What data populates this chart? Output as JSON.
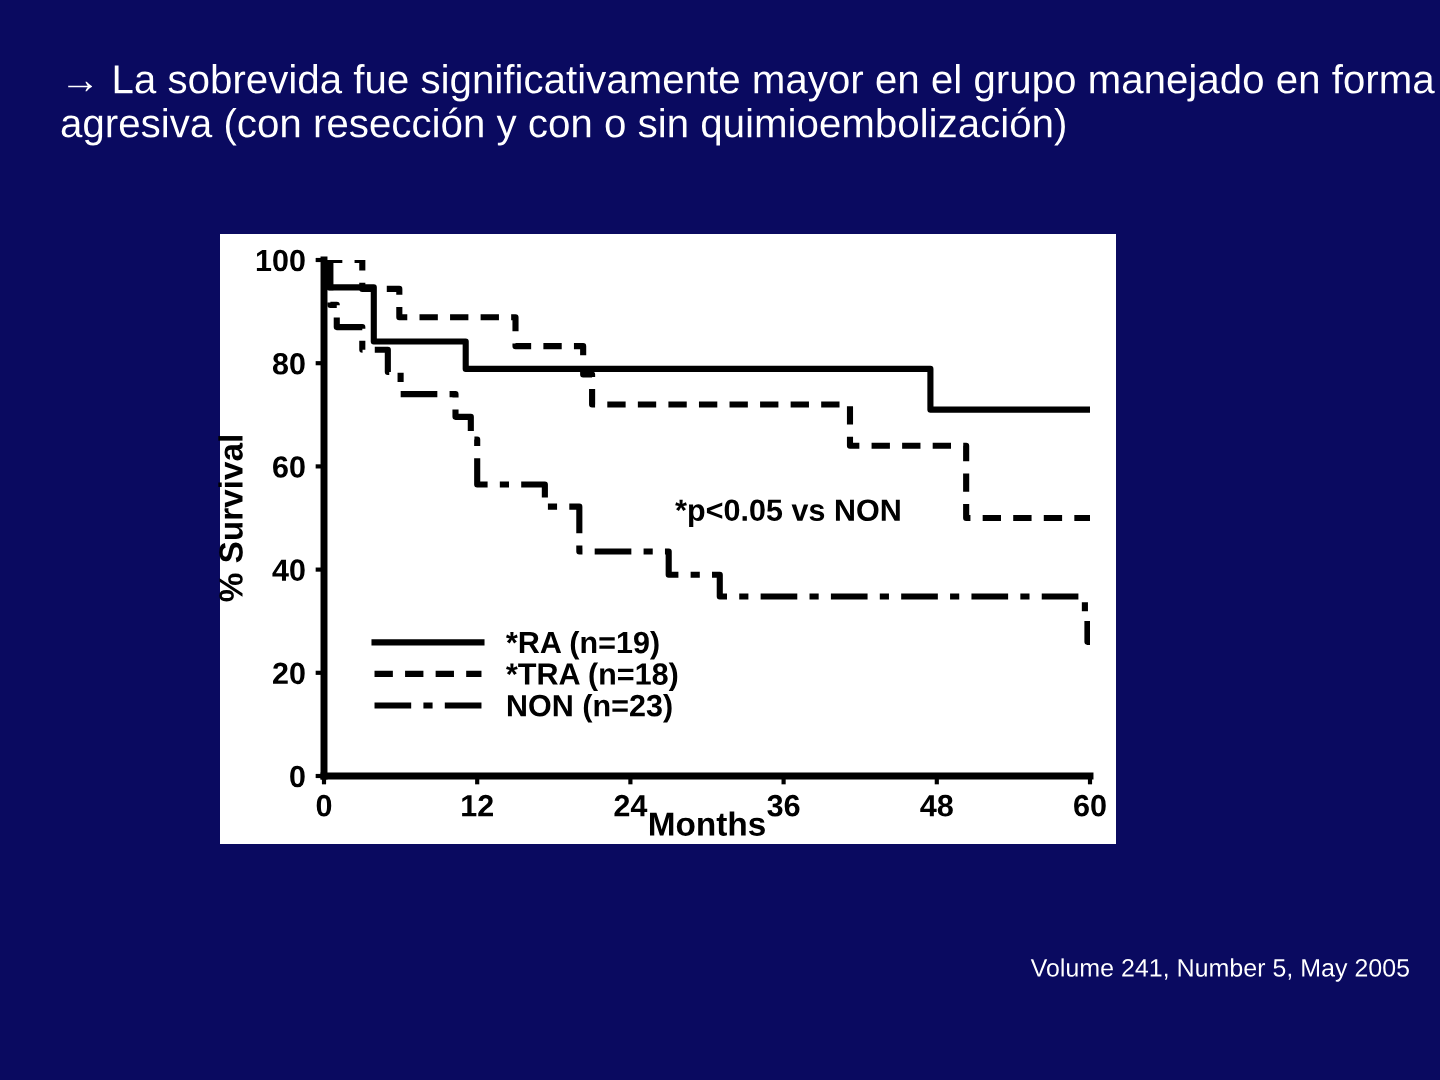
{
  "chart_data": {
    "type": "step",
    "title": "→ La sobrevida fue significativamente mayor en el grupo manejado en forma agresiva (con resección y con o sin quimioembolización)",
    "xlabel": "Months",
    "ylabel": "% Survival",
    "xlim": [
      0,
      60
    ],
    "xticks": [
      0,
      12,
      24,
      36,
      48,
      60
    ],
    "ylim": [
      0,
      100
    ],
    "yticks": [
      0,
      20,
      40,
      60,
      80,
      100
    ],
    "grid": false,
    "legend": "bottom left",
    "series": [
      {
        "name": "*RA (n=19)",
        "color": "#000000",
        "line_style": "solid",
        "x": [
          0,
          0.4,
          3.9,
          11.1,
          47.5,
          60
        ],
        "values": [
          100,
          94.7,
          84.2,
          78.9,
          71,
          71
        ]
      },
      {
        "name": "*TRA (n=18)",
        "color": "#000000",
        "line_style": "dashed",
        "x": [
          0,
          3,
          5.9,
          15,
          20.3,
          21,
          41.2,
          50.3,
          60
        ],
        "values": [
          100,
          94.4,
          88.9,
          83.3,
          77.8,
          72,
          64,
          50,
          50
        ]
      },
      {
        "name": "NON (n=23)",
        "color": "#000000",
        "line_style": "dashdot",
        "x": [
          0,
          0.5,
          1,
          3,
          5,
          6,
          10.3,
          11.5,
          12,
          17.3,
          20,
          27,
          31,
          59.6,
          59.8,
          60
        ],
        "values": [
          100,
          91.3,
          87,
          82.6,
          78.3,
          74,
          69.6,
          65.2,
          56.5,
          52.2,
          43.5,
          39,
          34.8,
          30.4,
          26,
          26
        ]
      }
    ],
    "annotations": [
      "*p<0.05 vs NON",
      "Volume 241, Number 5, May 2005"
    ]
  }
}
